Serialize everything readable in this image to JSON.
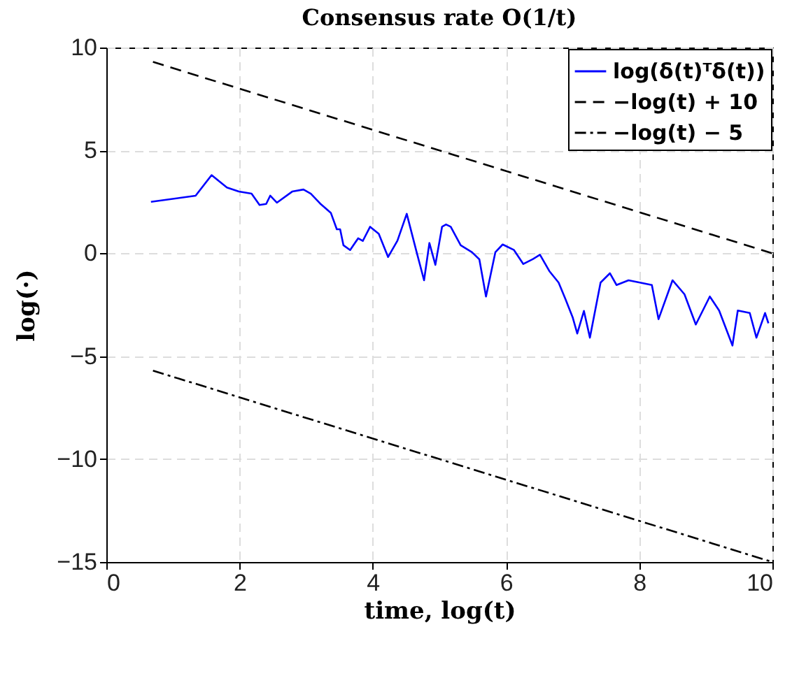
{
  "chart_data": {
    "type": "line",
    "title": "Consensus rate O(1/t)",
    "xlabel": "time, log(t)",
    "ylabel": "log(·)",
    "xlim": [
      0,
      10
    ],
    "xticks": [
      0,
      2,
      4,
      6,
      8,
      10
    ],
    "ylim": [
      -15,
      10
    ],
    "yticks": [
      -15,
      -10,
      -5,
      0,
      5,
      10
    ],
    "grid": true,
    "legend": "top right",
    "series": [
      {
        "name": "log(δ(t)ᵀδ(t))",
        "color": "#0000ff",
        "line_style": "solid",
        "x": [
          0.67,
          1.34,
          1.58,
          1.81,
          1.99,
          2.18,
          2.3,
          2.4,
          2.46,
          2.56,
          2.79,
          2.96,
          3.07,
          3.21,
          3.37,
          3.46,
          3.51,
          3.56,
          3.66,
          3.78,
          3.85,
          3.96,
          4.09,
          4.23,
          4.37,
          4.51,
          4.65,
          4.77,
          4.85,
          4.94,
          5.04,
          5.1,
          5.17,
          5.32,
          5.49,
          5.6,
          5.7,
          5.84,
          5.95,
          6.12,
          6.26,
          6.4,
          6.51,
          6.65,
          6.79,
          6.89,
          7.0,
          7.07,
          7.17,
          7.26,
          7.42,
          7.56,
          7.66,
          7.84,
          8.01,
          8.19,
          8.29,
          8.5,
          8.68,
          8.85,
          9.06,
          9.2,
          9.4,
          9.48,
          9.66,
          9.76,
          9.89,
          9.94
        ],
        "values": [
          2.5,
          2.8,
          3.8,
          3.2,
          3.0,
          2.9,
          2.35,
          2.4,
          2.8,
          2.46,
          3.0,
          3.1,
          2.9,
          2.42,
          1.97,
          1.17,
          1.17,
          0.39,
          0.16,
          0.73,
          0.6,
          1.29,
          0.95,
          -0.18,
          0.61,
          1.92,
          0.16,
          -1.31,
          0.5,
          -0.56,
          1.29,
          1.4,
          1.29,
          0.39,
          0.05,
          -0.29,
          -2.1,
          0.05,
          0.43,
          0.16,
          -0.52,
          -0.29,
          -0.07,
          -0.86,
          -1.42,
          -2.2,
          -3.1,
          -3.9,
          -2.8,
          -4.1,
          -1.42,
          -0.97,
          -1.54,
          -1.31,
          -1.42,
          -1.54,
          -3.2,
          -1.31,
          -1.99,
          -3.46,
          -2.1,
          -2.78,
          -4.48,
          -2.78,
          -2.9,
          -4.1,
          -2.9,
          -3.4
        ]
      },
      {
        "name": "−log(t) + 10",
        "color": "#000000",
        "line_style": "dashed",
        "x": [
          0.7,
          10
        ],
        "values": [
          9.3,
          0
        ]
      },
      {
        "name": "−log(t) − 5",
        "color": "#000000",
        "line_style": "dashdot",
        "x": [
          0.7,
          10
        ],
        "values": [
          -5.7,
          -15
        ]
      }
    ]
  }
}
